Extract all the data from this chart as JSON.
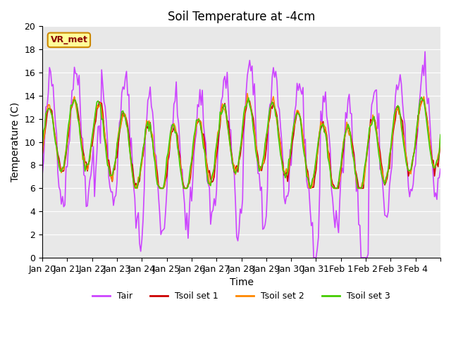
{
  "title": "Soil Temperature at -4cm",
  "xlabel": "Time",
  "ylabel": "Temperature (C)",
  "ylim": [
    0,
    20
  ],
  "bg_color": "#e8e8e8",
  "legend_label": "VR_met",
  "series_colors": {
    "Tair": "#cc44ff",
    "Tsoil1": "#cc0000",
    "Tsoil2": "#ff8800",
    "Tsoil3": "#44cc00"
  },
  "xtick_labels": [
    "Jan 20",
    "Jan 21",
    "Jan 22",
    "Jan 23",
    "Jan 24",
    "Jan 25",
    "Jan 26",
    "Jan 27",
    "Jan 28",
    "Jan 29",
    "Jan 30",
    "Jan 31",
    "Feb 1",
    "Feb 2",
    "Feb 3",
    "Feb 4",
    ""
  ],
  "n_points": 337
}
